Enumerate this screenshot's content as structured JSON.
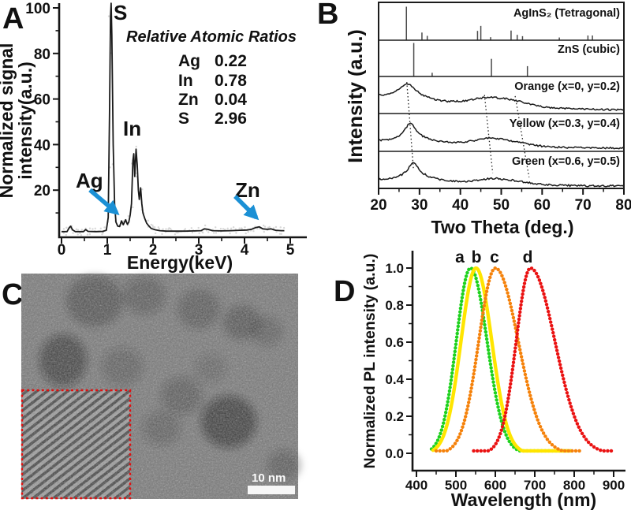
{
  "panels": {
    "a": {
      "letter": "A"
    },
    "b": {
      "letter": "B"
    },
    "c": {
      "letter": "C",
      "scale_bar_label": "10 nm"
    },
    "d": {
      "letter": "D"
    }
  },
  "colors": {
    "accent_blue": "#1b90d5",
    "line_dark": "#1a1a1a",
    "stick_gray": "#4a4a4a",
    "ghost_gray": "#c8c8c8",
    "inset_red": "#e01010",
    "pl_green": "#1ed21e",
    "pl_yellow": "#ffe500",
    "pl_orange": "#f5820b",
    "pl_red": "#ea1212"
  },
  "chart_data": [
    {
      "id": "panel_a_eds",
      "type": "line",
      "title": "EDS spectrum",
      "xlabel": "Energy(keV)",
      "ylabel_line1": "Normalized signal",
      "ylabel_line2": "intensity(a.u.)",
      "xlim": [
        0,
        5.35
      ],
      "ylim": [
        0,
        103
      ],
      "xticks": [
        0,
        1,
        2,
        3,
        4,
        5
      ],
      "yticks": [
        20,
        40,
        60,
        80,
        100
      ],
      "points": [
        [
          0,
          1.8
        ],
        [
          0.12,
          1.8
        ],
        [
          0.17,
          3.6
        ],
        [
          0.2,
          4.2
        ],
        [
          0.24,
          2.6
        ],
        [
          0.3,
          1.8
        ],
        [
          0.48,
          1.8
        ],
        [
          0.53,
          2.7
        ],
        [
          0.58,
          1.9
        ],
        [
          0.75,
          1.8
        ],
        [
          0.9,
          1.9
        ],
        [
          0.98,
          2.4
        ],
        [
          1.02,
          8
        ],
        [
          1.05,
          55
        ],
        [
          1.07,
          96
        ],
        [
          1.085,
          102
        ],
        [
          1.1,
          88
        ],
        [
          1.13,
          40
        ],
        [
          1.16,
          14
        ],
        [
          1.19,
          6
        ],
        [
          1.23,
          4.2
        ],
        [
          1.27,
          4
        ],
        [
          1.31,
          6.5
        ],
        [
          1.35,
          4.8
        ],
        [
          1.4,
          7
        ],
        [
          1.44,
          5
        ],
        [
          1.47,
          6
        ],
        [
          1.5,
          9
        ],
        [
          1.53,
          14
        ],
        [
          1.56,
          33
        ],
        [
          1.58,
          36
        ],
        [
          1.6,
          26
        ],
        [
          1.63,
          38
        ],
        [
          1.655,
          31
        ],
        [
          1.68,
          20
        ],
        [
          1.7,
          16
        ],
        [
          1.73,
          21
        ],
        [
          1.755,
          14
        ],
        [
          1.78,
          10
        ],
        [
          1.82,
          7.5
        ],
        [
          1.86,
          5.5
        ],
        [
          1.9,
          4.5
        ],
        [
          1.96,
          3.2
        ],
        [
          2.05,
          2.6
        ],
        [
          2.15,
          2.2
        ],
        [
          2.3,
          2
        ],
        [
          2.5,
          2
        ],
        [
          2.7,
          2
        ],
        [
          2.9,
          2.1
        ],
        [
          3.05,
          2.2
        ],
        [
          3.12,
          3
        ],
        [
          3.2,
          2.8
        ],
        [
          3.3,
          2.2
        ],
        [
          3.5,
          2.1
        ],
        [
          3.7,
          2.2
        ],
        [
          3.9,
          2.4
        ],
        [
          4.05,
          2.5
        ],
        [
          4.15,
          2.8
        ],
        [
          4.25,
          3.6
        ],
        [
          4.32,
          3.9
        ],
        [
          4.4,
          3
        ],
        [
          4.5,
          2.8
        ],
        [
          4.58,
          3
        ],
        [
          4.68,
          2.4
        ],
        [
          4.8,
          2.2
        ],
        [
          4.87,
          2.2
        ]
      ],
      "annotations": [
        {
          "text": "S",
          "peak_kev": 1.08
        },
        {
          "text": "In",
          "peak_kev": 1.63
        },
        {
          "text": "Ag",
          "peak_kev": 1.3
        },
        {
          "text": "Zn",
          "peak_kev": 4.3
        }
      ],
      "ratios_title": "Relative Atomic Ratios",
      "ratios": [
        [
          "Ag",
          "0.22"
        ],
        [
          "In",
          "0.78"
        ],
        [
          "Zn",
          "0.04"
        ],
        [
          "S",
          "2.96"
        ]
      ]
    },
    {
      "id": "panel_b_xrd",
      "type": "line",
      "title": "XRD patterns",
      "xlabel": "Two Theta (deg.)",
      "ylabel": "Intensity (a.u.)",
      "xlim": [
        20,
        80
      ],
      "xticks": [
        20,
        30,
        40,
        50,
        60,
        70,
        80
      ],
      "reference_sticks": [
        {
          "label": "AgInS₂ (Tetragonal)",
          "peaks": [
            [
              26.8,
              1.0
            ],
            [
              30.6,
              0.22
            ],
            [
              31.9,
              0.12
            ],
            [
              44.2,
              0.27
            ],
            [
              45.0,
              0.42
            ],
            [
              47.4,
              0.08
            ],
            [
              52.4,
              0.28
            ],
            [
              53.9,
              0.15
            ],
            [
              55.2,
              0.11
            ],
            [
              64.2,
              0.07
            ],
            [
              71.2,
              0.13
            ],
            [
              72.3,
              0.13
            ]
          ]
        },
        {
          "label": "ZnS (cubic)",
          "peaks": [
            [
              28.6,
              1.0
            ],
            [
              33.1,
              0.1
            ],
            [
              47.6,
              0.52
            ],
            [
              56.4,
              0.3
            ]
          ]
        }
      ],
      "curves": [
        {
          "label": "Orange (x=0, y=0.2)",
          "points": [
            [
              20,
              0.5
            ],
            [
              21,
              0.5
            ],
            [
              22,
              0.52
            ],
            [
              23,
              0.55
            ],
            [
              24,
              0.59
            ],
            [
              25,
              0.66
            ],
            [
              26,
              0.75
            ],
            [
              26.9,
              0.82
            ],
            [
              27.8,
              0.77
            ],
            [
              28.6,
              0.68
            ],
            [
              29.5,
              0.59
            ],
            [
              30.5,
              0.52
            ],
            [
              32,
              0.44
            ],
            [
              33.5,
              0.39
            ],
            [
              35,
              0.355
            ],
            [
              36.5,
              0.335
            ],
            [
              38,
              0.325
            ],
            [
              39.5,
              0.33
            ],
            [
              41,
              0.345
            ],
            [
              42.5,
              0.37
            ],
            [
              44,
              0.4
            ],
            [
              45.5,
              0.425
            ],
            [
              46.5,
              0.435
            ],
            [
              47.5,
              0.435
            ],
            [
              48.5,
              0.43
            ],
            [
              50,
              0.415
            ],
            [
              51.5,
              0.395
            ],
            [
              53,
              0.365
            ],
            [
              54.5,
              0.325
            ],
            [
              56,
              0.28
            ],
            [
              57.5,
              0.24
            ],
            [
              59,
              0.205
            ],
            [
              61,
              0.175
            ],
            [
              63,
              0.155
            ],
            [
              65,
              0.14
            ],
            [
              67,
              0.13
            ],
            [
              69,
              0.12
            ],
            [
              71,
              0.115
            ],
            [
              73,
              0.11
            ],
            [
              75,
              0.105
            ],
            [
              77,
              0.1
            ],
            [
              80,
              0.1
            ]
          ]
        },
        {
          "label": "Yellow (x=0.3, y=0.4)",
          "points": [
            [
              20,
              0.3
            ],
            [
              21,
              0.305
            ],
            [
              22,
              0.315
            ],
            [
              23,
              0.33
            ],
            [
              24,
              0.36
            ],
            [
              25,
              0.42
            ],
            [
              26,
              0.53
            ],
            [
              27,
              0.68
            ],
            [
              27.7,
              0.78
            ],
            [
              28.4,
              0.71
            ],
            [
              29.2,
              0.58
            ],
            [
              30,
              0.48
            ],
            [
              31,
              0.4
            ],
            [
              32.5,
              0.33
            ],
            [
              34,
              0.285
            ],
            [
              35.5,
              0.26
            ],
            [
              37,
              0.245
            ],
            [
              38.5,
              0.24
            ],
            [
              40,
              0.245
            ],
            [
              41.5,
              0.26
            ],
            [
              43,
              0.285
            ],
            [
              44.5,
              0.315
            ],
            [
              46,
              0.345
            ],
            [
              47,
              0.36
            ],
            [
              48,
              0.355
            ],
            [
              49.5,
              0.34
            ],
            [
              51,
              0.315
            ],
            [
              52.5,
              0.285
            ],
            [
              54,
              0.25
            ],
            [
              55.5,
              0.215
            ],
            [
              57,
              0.185
            ],
            [
              58.5,
              0.16
            ],
            [
              60,
              0.14
            ],
            [
              62,
              0.125
            ],
            [
              64,
              0.11
            ],
            [
              66,
              0.105
            ],
            [
              68,
              0.1
            ],
            [
              70,
              0.095
            ],
            [
              73,
              0.09
            ],
            [
              76,
              0.09
            ],
            [
              80,
              0.09
            ]
          ]
        },
        {
          "label": "Green (x=0.6, y=0.5)",
          "points": [
            [
              20,
              0.25
            ],
            [
              21,
              0.255
            ],
            [
              22,
              0.265
            ],
            [
              23,
              0.28
            ],
            [
              24,
              0.3
            ],
            [
              25,
              0.335
            ],
            [
              26,
              0.39
            ],
            [
              27,
              0.5
            ],
            [
              27.8,
              0.62
            ],
            [
              28.5,
              0.7
            ],
            [
              29.2,
              0.63
            ],
            [
              30,
              0.5
            ],
            [
              31,
              0.4
            ],
            [
              32,
              0.335
            ],
            [
              33.5,
              0.28
            ],
            [
              35,
              0.245
            ],
            [
              36.5,
              0.22
            ],
            [
              38,
              0.2
            ],
            [
              39.5,
              0.19
            ],
            [
              41,
              0.19
            ],
            [
              42.5,
              0.2
            ],
            [
              44,
              0.22
            ],
            [
              45.5,
              0.245
            ],
            [
              47,
              0.265
            ],
            [
              48,
              0.27
            ],
            [
              49,
              0.265
            ],
            [
              50.5,
              0.25
            ],
            [
              52,
              0.23
            ],
            [
              53.5,
              0.21
            ],
            [
              55,
              0.18
            ],
            [
              56.5,
              0.155
            ],
            [
              58,
              0.13
            ],
            [
              60,
              0.11
            ],
            [
              62,
              0.095
            ],
            [
              64,
              0.085
            ],
            [
              66,
              0.08
            ],
            [
              68,
              0.075
            ],
            [
              71,
              0.07
            ],
            [
              74,
              0.07
            ],
            [
              77,
              0.07
            ],
            [
              80,
              0.07
            ]
          ]
        }
      ],
      "guide_lines": [
        {
          "from_theta": 26.9,
          "from_frac": 0.85,
          "to_theta": 28.5,
          "to_frac": 0.55
        },
        {
          "from_theta": 45.9,
          "from_frac": 0.5,
          "to_theta": 47.9,
          "to_frac": 0.42
        },
        {
          "from_theta": 53.4,
          "from_frac": 0.47,
          "to_theta": 56.8,
          "to_frac": 0.3
        }
      ]
    },
    {
      "id": "panel_d_pl",
      "type": "line",
      "title": "PL spectra",
      "xlabel": "Wavelength (nm)",
      "ylabel": "Normalized PL intensity (a.u.)",
      "xlim": [
        380,
        940
      ],
      "ylim": [
        -0.12,
        1.12
      ],
      "xticks": [
        400,
        500,
        600,
        700,
        800,
        900
      ],
      "yticks": [
        "0.0",
        "0.2",
        "0.4",
        "0.6",
        "0.8",
        "1.0"
      ],
      "series": [
        {
          "name": "a",
          "color_key": "pl_green",
          "peak_nm": 537,
          "sigma_left": 36,
          "sigma_right": 42,
          "range": [
            438,
            795
          ]
        },
        {
          "name": "b",
          "color_key": "pl_yellow",
          "peak_nm": 551,
          "sigma_left": 38,
          "sigma_right": 40,
          "range": [
            442,
            792
          ]
        },
        {
          "name": "c",
          "color_key": "pl_orange",
          "peak_nm": 600,
          "sigma_left": 42,
          "sigma_right": 58,
          "range": [
            450,
            818
          ]
        },
        {
          "name": "d",
          "color_key": "pl_red",
          "peak_nm": 689,
          "sigma_left": 36,
          "sigma_right": 62,
          "range": [
            545,
            900
          ]
        }
      ],
      "curve_labels": [
        {
          "text": "a",
          "nm": 510
        },
        {
          "text": "b",
          "nm": 550
        },
        {
          "text": "c",
          "nm": 596
        },
        {
          "text": "d",
          "nm": 680
        }
      ]
    }
  ]
}
